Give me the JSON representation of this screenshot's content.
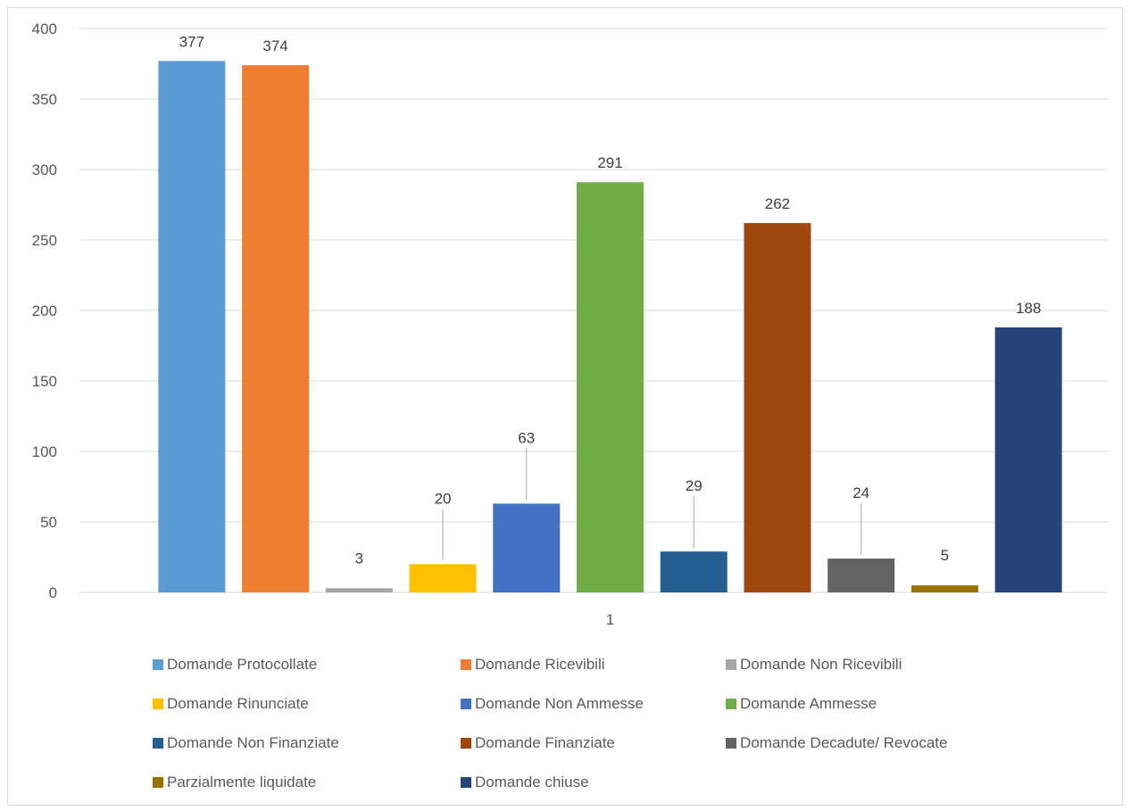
{
  "chart_data": {
    "type": "bar",
    "categories": [
      "1"
    ],
    "ylim": [
      0,
      400
    ],
    "yticks": [
      0,
      50,
      100,
      150,
      200,
      250,
      300,
      350,
      400
    ],
    "grid": true,
    "legend_position": "bottom",
    "series": [
      {
        "name": "Domande Protocollate",
        "values": [
          377
        ],
        "color": "#5B9BD5",
        "label": "377"
      },
      {
        "name": "Domande Ricevibili",
        "values": [
          374
        ],
        "color": "#ED7D31",
        "label": "374"
      },
      {
        "name": "Domande Non Ricevibili",
        "values": [
          3
        ],
        "color": "#A5A5A5",
        "label": "3"
      },
      {
        "name": "Domande Rinunciate",
        "values": [
          20
        ],
        "color": "#FFC000",
        "label": "20"
      },
      {
        "name": "Domande Non Ammesse",
        "values": [
          63
        ],
        "color": "#4472C4",
        "label": "63"
      },
      {
        "name": "Domande Ammesse",
        "values": [
          291
        ],
        "color": "#70AD47",
        "label": "291"
      },
      {
        "name": "Domande Non Finanziate",
        "values": [
          29
        ],
        "color": "#255E91",
        "label": "29"
      },
      {
        "name": "Domande Finanziate",
        "values": [
          262
        ],
        "color": "#9E480E",
        "label": "262"
      },
      {
        "name": "Domande Decadute/ Revocate",
        "values": [
          24
        ],
        "color": "#636363",
        "label": "24"
      },
      {
        "name": "Parzialmente liquidate",
        "values": [
          5
        ],
        "color": "#997300",
        "label": "5"
      },
      {
        "name": "Domande chiuse",
        "values": [
          188
        ],
        "color": "#264478",
        "label": "188"
      }
    ]
  }
}
